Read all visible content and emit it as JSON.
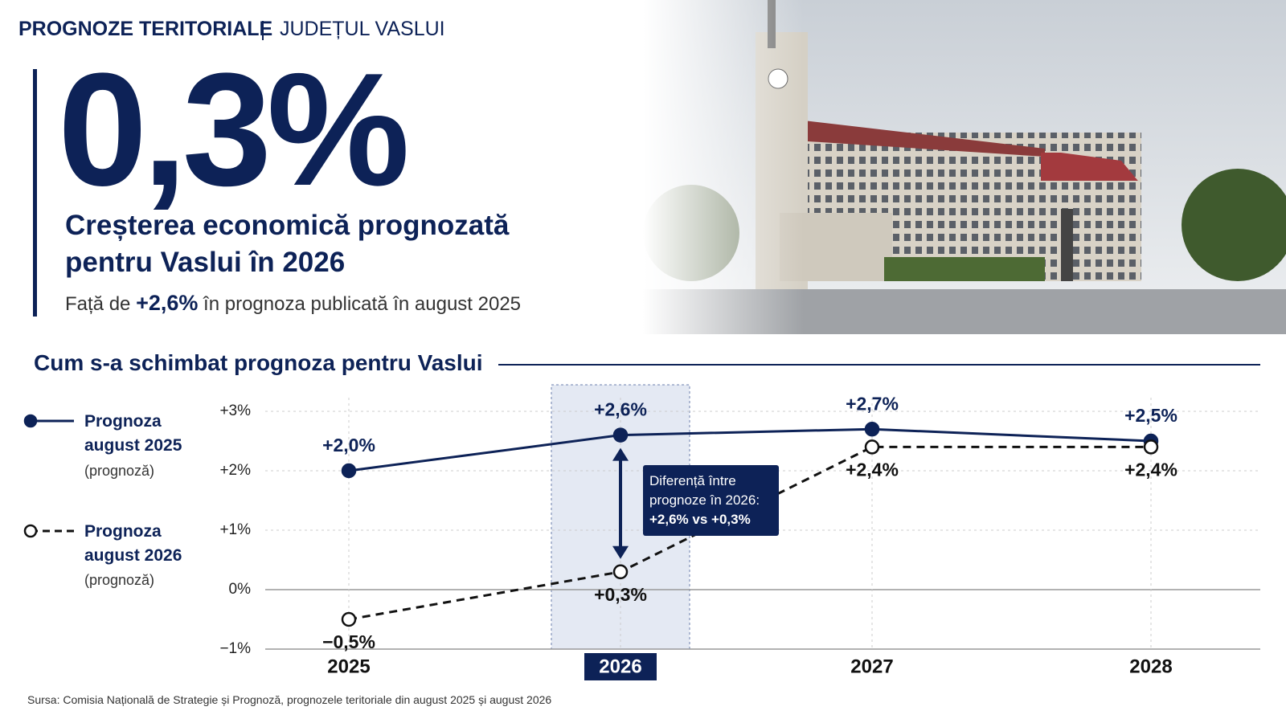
{
  "header": {
    "section": "PROGNOZE TERITORIALE",
    "region": "JUDEȚUL VASLUI"
  },
  "headline": {
    "value": "0,3%",
    "title_lines": [
      "Creșterea economică prognozată",
      "pentru Vaslui în 2026"
    ],
    "comparison_prefix": "Față de",
    "comparison_value": "+2,6%",
    "comparison_suffix": "în prognoza publicată în august 2025"
  },
  "chart_data": {
    "type": "line",
    "title": "Cum s-a schimbat prognoza pentru Vaslui",
    "categories": [
      "2025",
      "2026",
      "2027",
      "2028"
    ],
    "legend_note": "(prognoză)",
    "series": [
      {
        "name": "Prognoza august 2025",
        "color": "#0d2257",
        "style": "solid",
        "values": [
          2.0,
          2.6,
          2.7,
          2.5
        ],
        "value_labels": [
          "+2,0%",
          "+2,6%",
          "+2,7%",
          "+2,5%"
        ]
      },
      {
        "name": "Prognoza august 2026",
        "color": "#111111",
        "style": "dashed",
        "values": [
          -0.5,
          0.3,
          2.4,
          2.4
        ],
        "value_labels": [
          "−0,5%",
          "+0,3%",
          "+2,4%",
          "+2,4%"
        ]
      }
    ],
    "ylim": [
      -1,
      3
    ],
    "yticks": [
      {
        "value": -1,
        "label": "−1%"
      },
      0,
      {
        "value": 1,
        "label": "+1%"
      },
      {
        "value": 2,
        "label": "+2%"
      },
      {
        "value": 3,
        "label": "+3%"
      }
    ],
    "yticks_zero_label": "0%",
    "grid": true,
    "annotation_lines": [
      "Diferență între",
      "prognoze în 2026:",
      "+2,6% vs +0,3%"
    ]
  },
  "source": "Sursa: Comisia Națională de Strategie și Prognoză, prognozele teritoriale din august 2025 și august 2026"
}
